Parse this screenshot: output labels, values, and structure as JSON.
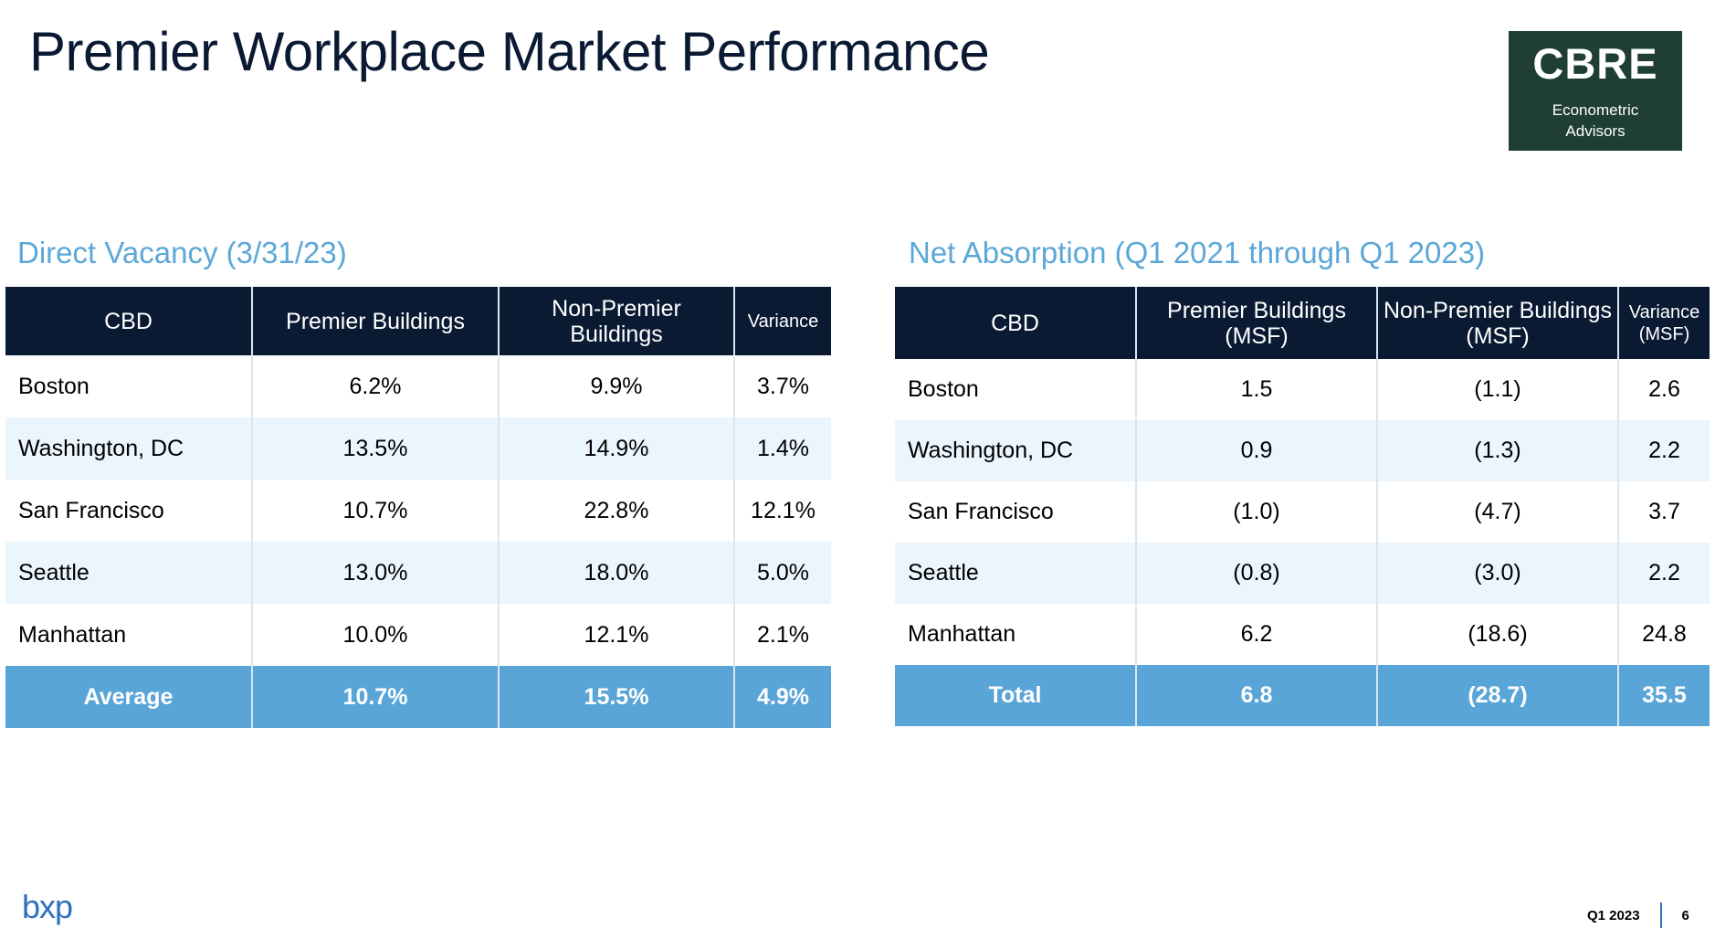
{
  "title": "Premier Workplace Market Performance",
  "logo": {
    "mark": "CBRE",
    "line1": "Econometric",
    "line2": "Advisors"
  },
  "vacancy": {
    "title": "Direct Vacancy (3/31/23)",
    "headers": [
      "CBD",
      "Premier Buildings",
      "Non-Premier Buildings",
      "Variance"
    ],
    "rows": [
      [
        "Boston",
        "6.2%",
        "9.9%",
        "3.7%"
      ],
      [
        "Washington,  DC",
        "13.5%",
        "14.9%",
        "1.4%"
      ],
      [
        "San Francisco",
        "10.7%",
        "22.8%",
        "12.1%"
      ],
      [
        "Seattle",
        "13.0%",
        "18.0%",
        "5.0%"
      ],
      [
        "Manhattan",
        "10.0%",
        "12.1%",
        "2.1%"
      ]
    ],
    "total": [
      "Average",
      "10.7%",
      "15.5%",
      "4.9%"
    ]
  },
  "absorption": {
    "title": "Net Absorption (Q1 2021 through Q1 2023)",
    "headers": [
      "CBD",
      "Premier Buildings (MSF)",
      "Non-Premier Buildings (MSF)",
      "Variance (MSF)"
    ],
    "rows": [
      [
        "Boston",
        "1.5",
        "(1.1)",
        "2.6"
      ],
      [
        "Washington,  DC",
        "0.9",
        "(1.3)",
        "2.2"
      ],
      [
        "San Francisco",
        "(1.0)",
        "(4.7)",
        "3.7"
      ],
      [
        "Seattle",
        "(0.8)",
        "(3.0)",
        "2.2"
      ],
      [
        "Manhattan",
        "6.2",
        "(18.6)",
        "24.8"
      ]
    ],
    "total": [
      "Total",
      "6.8",
      "(28.7)",
      "35.5"
    ]
  },
  "footer": {
    "brand": "bxp",
    "period": "Q1 2023",
    "page": "6"
  },
  "colors": {
    "header_bg": "#0a1a33",
    "accent": "#5aa5d8",
    "row_alt": "#ebf5fd",
    "logo_bg": "#1e3f31"
  }
}
